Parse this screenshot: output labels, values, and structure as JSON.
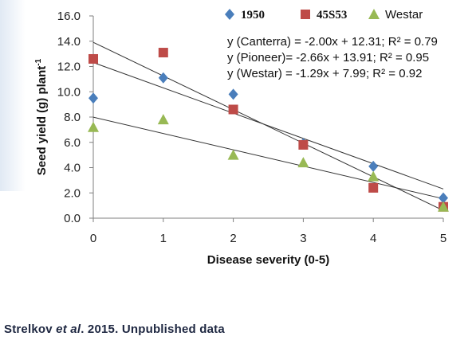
{
  "chart_data": {
    "type": "scatter",
    "xlabel": "Disease severity (0-5)",
    "ylabel_base": "Seed yield (g) plant",
    "ylabel_sup": "-1",
    "xlim": [
      0,
      5
    ],
    "ylim": [
      0,
      16
    ],
    "x_ticks": [
      "0",
      "1",
      "2",
      "3",
      "4",
      "5"
    ],
    "y_ticks": [
      "0.0",
      "2.0",
      "4.0",
      "6.0",
      "8.0",
      "10.0",
      "12.0",
      "14.0",
      "16.0"
    ],
    "grid": false,
    "legend_position": "top",
    "series": [
      {
        "name": "1950",
        "marker": "diamond",
        "color": "#4a7ebb",
        "x": [
          0,
          1,
          2,
          3,
          4,
          5
        ],
        "y": [
          9.5,
          11.1,
          9.8,
          5.9,
          4.1,
          1.6
        ]
      },
      {
        "name": "45S53",
        "marker": "square",
        "color": "#be4b48",
        "x": [
          0,
          1,
          2,
          3,
          4,
          5
        ],
        "y": [
          12.6,
          13.1,
          8.6,
          5.8,
          2.4,
          0.9
        ]
      },
      {
        "name": "Westar",
        "marker": "triangle",
        "color": "#98b954",
        "x": [
          0,
          1,
          2,
          3,
          4,
          5
        ],
        "y": [
          7.2,
          7.8,
          5.0,
          4.4,
          3.3,
          0.9
        ]
      }
    ],
    "trendlines": [
      {
        "slope": -2.0,
        "intercept": 12.31
      },
      {
        "slope": -2.66,
        "intercept": 13.91
      },
      {
        "slope": -1.29,
        "intercept": 7.99
      }
    ],
    "annotations": [
      "y (Canterra) = -2.00x + 12.31; R² = 0.79",
      "y (Pioneer)= -2.66x + 13.91; R² = 0.95",
      "y (Westar)  = -1.29x + 7.99; R² = 0.92"
    ]
  },
  "credit": {
    "before": "Strelkov ",
    "italic": "et al",
    "after": ". 2015. Unpublished data"
  }
}
